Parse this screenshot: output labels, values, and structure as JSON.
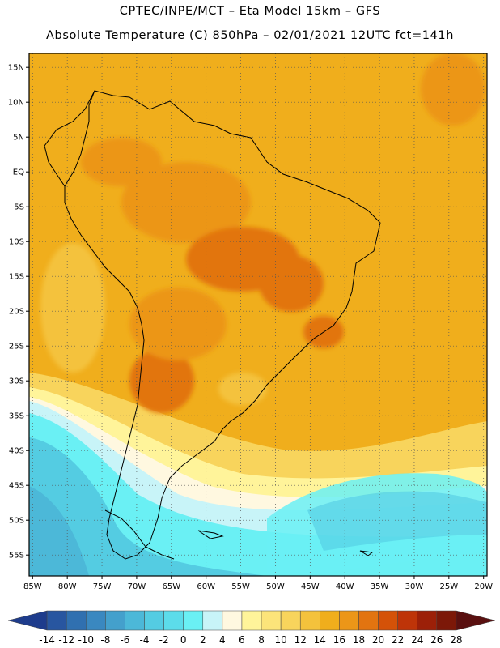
{
  "header": {
    "line1": "CPTEC/INPE/MCT –  Eta Model 15km – GFS",
    "line2": "Absolute Temperature (C) 850hPa – 02/01/2021 12UTC fct=141h"
  },
  "map": {
    "lon_range": [
      -85.5,
      -19.5
    ],
    "lat_range": [
      -58,
      17
    ],
    "lat_labels": [
      "15N",
      "10N",
      "5N",
      "EQ",
      "5S",
      "10S",
      "15S",
      "20S",
      "25S",
      "30S",
      "35S",
      "40S",
      "45S",
      "50S",
      "55S"
    ],
    "lat_values": [
      15,
      10,
      5,
      0,
      -5,
      -10,
      -15,
      -20,
      -25,
      -30,
      -35,
      -40,
      -45,
      -50,
      -55
    ],
    "lon_labels": [
      "85W",
      "80W",
      "75W",
      "70W",
      "65W",
      "60W",
      "55W",
      "50W",
      "45W",
      "40W",
      "35W",
      "30W",
      "25W",
      "20W"
    ],
    "lon_values": [
      -85,
      -80,
      -75,
      -70,
      -65,
      -60,
      -55,
      -50,
      -45,
      -40,
      -35,
      -30,
      -25,
      -20
    ],
    "gridlines": "dotted"
  },
  "colorbar": {
    "labels": [
      "-14",
      "-12",
      "-10",
      "-8",
      "-6",
      "-4",
      "-2",
      "0",
      "2",
      "4",
      "6",
      "8",
      "10",
      "12",
      "14",
      "16",
      "18",
      "20",
      "22",
      "24",
      "26",
      "28"
    ],
    "colors": [
      "#1e3c8c",
      "#2856a0",
      "#3070b0",
      "#3a88c0",
      "#44a0cc",
      "#4cb8d8",
      "#54cce2",
      "#5cdcea",
      "#6af0f4",
      "#c8f4f8",
      "#fff8e0",
      "#fff49a",
      "#fce47a",
      "#f8d45c",
      "#f4c23c",
      "#f0ae1c",
      "#ec9618",
      "#e27410",
      "#d45208",
      "#be3408",
      "#9c2008",
      "#7c1808",
      "#5a1010"
    ]
  }
}
